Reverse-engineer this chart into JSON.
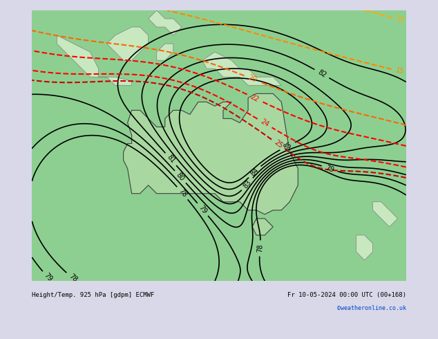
{
  "title_left": "Height/Temp. 925 hPa [gdpm] ECMWF",
  "title_right": "Fr 10-05-2024 00:00 UTC (00+168)",
  "credit": "©weatheronline.co.uk",
  "bg_color": "#d8d8e8",
  "land_color": "#c8e8c8",
  "australia_green": "#90c890",
  "fig_width": 6.34,
  "fig_height": 4.9,
  "dpi": 100
}
